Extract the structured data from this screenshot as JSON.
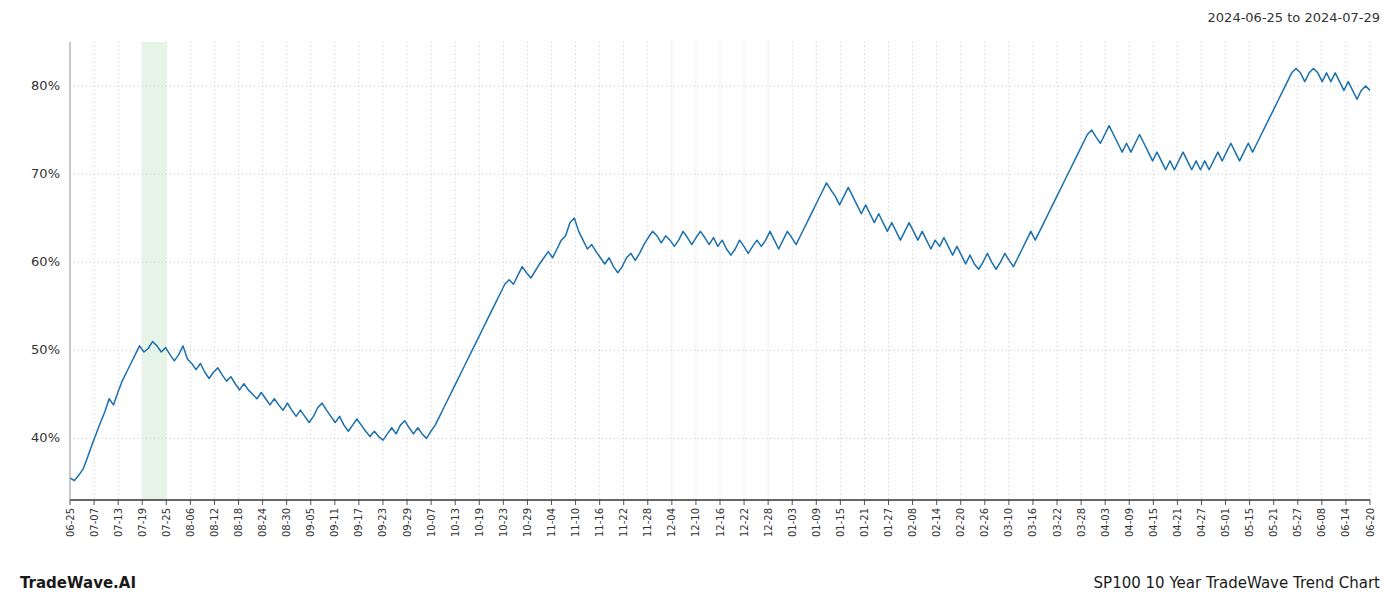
{
  "chart_data": {
    "type": "line",
    "title": "SP100 10 Year TradeWave Trend Chart",
    "subtitle": "2024-06-25 to 2024-07-29",
    "annotations": [
      "TradeWave.AI"
    ],
    "color": "#1a6fad",
    "grid": true,
    "xlim": [
      0,
      299
    ],
    "ylim": [
      33,
      85
    ],
    "yticks": [
      {
        "value": 40,
        "label": "40%"
      },
      {
        "value": 50,
        "label": "50%"
      },
      {
        "value": 60,
        "label": "60%"
      },
      {
        "value": 70,
        "label": "70%"
      },
      {
        "value": 80,
        "label": "80%"
      }
    ],
    "xticks": [
      {
        "value": 0,
        "label": "06-25"
      },
      {
        "value": 5.537037,
        "label": "07-07"
      },
      {
        "value": 11.074074,
        "label": "07-13"
      },
      {
        "value": 16.611111,
        "label": "07-19"
      },
      {
        "value": 22.148148,
        "label": "07-25"
      },
      {
        "value": 27.685185,
        "label": "08-06"
      },
      {
        "value": 33.222222,
        "label": "08-12"
      },
      {
        "value": 38.759259,
        "label": "08-18"
      },
      {
        "value": 44.296296,
        "label": "08-24"
      },
      {
        "value": 49.833333,
        "label": "08-30"
      },
      {
        "value": 55.37037,
        "label": "09-05"
      },
      {
        "value": 60.907407,
        "label": "09-11"
      },
      {
        "value": 66.444444,
        "label": "09-17"
      },
      {
        "value": 71.981481,
        "label": "09-23"
      },
      {
        "value": 77.518519,
        "label": "09-29"
      },
      {
        "value": 83.055556,
        "label": "10-07"
      },
      {
        "value": 88.592593,
        "label": "10-13"
      },
      {
        "value": 94.12963,
        "label": "10-19"
      },
      {
        "value": 99.666667,
        "label": "10-23"
      },
      {
        "value": 105.203704,
        "label": "10-29"
      },
      {
        "value": 110.740741,
        "label": "11-04"
      },
      {
        "value": 116.277778,
        "label": "11-10"
      },
      {
        "value": 121.814815,
        "label": "11-16"
      },
      {
        "value": 127.351852,
        "label": "11-22"
      },
      {
        "value": 132.888889,
        "label": "11-28"
      },
      {
        "value": 138.425926,
        "label": "12-04"
      },
      {
        "value": 143.962963,
        "label": "12-10"
      },
      {
        "value": 149.5,
        "label": "12-16"
      },
      {
        "value": 155.037037,
        "label": "12-22"
      },
      {
        "value": 160.574074,
        "label": "12-28"
      },
      {
        "value": 166.111111,
        "label": "01-03"
      },
      {
        "value": 171.648148,
        "label": "01-09"
      },
      {
        "value": 177.185185,
        "label": "01-15"
      },
      {
        "value": 182.722222,
        "label": "01-21"
      },
      {
        "value": 188.259259,
        "label": "01-27"
      },
      {
        "value": 193.796296,
        "label": "02-08"
      },
      {
        "value": 199.333333,
        "label": "02-14"
      },
      {
        "value": 204.87037,
        "label": "02-20"
      },
      {
        "value": 210.407407,
        "label": "02-26"
      },
      {
        "value": 215.944444,
        "label": "03-10"
      },
      {
        "value": 221.481481,
        "label": "03-16"
      },
      {
        "value": 227.018519,
        "label": "03-22"
      },
      {
        "value": 232.555556,
        "label": "03-28"
      },
      {
        "value": 238.092593,
        "label": "04-03"
      },
      {
        "value": 243.62963,
        "label": "04-09"
      },
      {
        "value": 249.166667,
        "label": "04-15"
      },
      {
        "value": 254.703704,
        "label": "04-21"
      },
      {
        "value": 260.240741,
        "label": "04-27"
      },
      {
        "value": 265.777778,
        "label": "05-01"
      },
      {
        "value": 271.314815,
        "label": "05-15"
      },
      {
        "value": 276.851852,
        "label": "05-21"
      },
      {
        "value": 282.388889,
        "label": "05-27"
      },
      {
        "value": 287.925926,
        "label": "06-08"
      },
      {
        "value": 293.462963,
        "label": "06-14"
      },
      {
        "value": 299,
        "label": "06-20"
      }
    ],
    "span": {
      "from": "07-19",
      "to": "07-25",
      "color": "#c8e6c9"
    },
    "values": [
      35.5,
      35.2,
      35.8,
      36.5,
      37.8,
      39.2,
      40.5,
      41.8,
      43.0,
      44.5,
      43.8,
      45.2,
      46.5,
      47.5,
      48.5,
      49.5,
      50.5,
      49.8,
      50.2,
      51.0,
      50.5,
      49.8,
      50.3,
      49.5,
      48.8,
      49.5,
      50.5,
      49.0,
      48.5,
      47.8,
      48.5,
      47.5,
      46.8,
      47.5,
      48.0,
      47.2,
      46.5,
      47.0,
      46.2,
      45.5,
      46.2,
      45.5,
      45.0,
      44.5,
      45.2,
      44.5,
      43.8,
      44.5,
      43.8,
      43.2,
      44.0,
      43.2,
      42.5,
      43.2,
      42.5,
      41.8,
      42.5,
      43.5,
      44.0,
      43.2,
      42.5,
      41.8,
      42.5,
      41.5,
      40.8,
      41.5,
      42.2,
      41.5,
      40.8,
      40.2,
      40.8,
      40.2,
      39.8,
      40.5,
      41.2,
      40.5,
      41.5,
      42.0,
      41.2,
      40.5,
      41.2,
      40.5,
      40.0,
      40.8,
      41.5,
      42.5,
      43.5,
      44.5,
      45.5,
      46.5,
      47.5,
      48.5,
      49.5,
      50.5,
      51.5,
      52.5,
      53.5,
      54.5,
      55.5,
      56.5,
      57.5,
      58.0,
      57.5,
      58.5,
      59.5,
      58.8,
      58.2,
      59.0,
      59.8,
      60.5,
      61.2,
      60.5,
      61.5,
      62.5,
      63.0,
      64.5,
      65.0,
      63.5,
      62.5,
      61.5,
      62.0,
      61.2,
      60.5,
      59.8,
      60.5,
      59.5,
      58.8,
      59.5,
      60.5,
      61.0,
      60.2,
      61.0,
      62.0,
      62.8,
      63.5,
      63.0,
      62.2,
      63.0,
      62.5,
      61.8,
      62.5,
      63.5,
      62.8,
      62.0,
      62.8,
      63.5,
      62.8,
      62.0,
      62.8,
      61.8,
      62.5,
      61.5,
      60.8,
      61.5,
      62.5,
      61.8,
      61.0,
      61.8,
      62.5,
      61.8,
      62.5,
      63.5,
      62.5,
      61.5,
      62.5,
      63.5,
      62.8,
      62.0,
      63.0,
      64.0,
      65.0,
      66.0,
      67.0,
      68.0,
      69.0,
      68.2,
      67.5,
      66.5,
      67.5,
      68.5,
      67.5,
      66.5,
      65.5,
      66.5,
      65.5,
      64.5,
      65.5,
      64.5,
      63.5,
      64.5,
      63.5,
      62.5,
      63.5,
      64.5,
      63.5,
      62.5,
      63.5,
      62.5,
      61.5,
      62.5,
      61.8,
      62.8,
      61.8,
      60.8,
      61.8,
      60.8,
      59.8,
      60.8,
      59.8,
      59.2,
      60.0,
      61.0,
      60.0,
      59.2,
      60.0,
      61.0,
      60.2,
      59.5,
      60.5,
      61.5,
      62.5,
      63.5,
      62.5,
      63.5,
      64.5,
      65.5,
      66.5,
      67.5,
      68.5,
      69.5,
      70.5,
      71.5,
      72.5,
      73.5,
      74.5,
      75.0,
      74.2,
      73.5,
      74.5,
      75.5,
      74.5,
      73.5,
      72.5,
      73.5,
      72.5,
      73.5,
      74.5,
      73.5,
      72.5,
      71.5,
      72.5,
      71.5,
      70.5,
      71.5,
      70.5,
      71.5,
      72.5,
      71.5,
      70.5,
      71.5,
      70.5,
      71.5,
      70.5,
      71.5,
      72.5,
      71.5,
      72.5,
      73.5,
      72.5,
      71.5,
      72.5,
      73.5,
      72.5,
      73.5,
      74.5,
      75.5,
      76.5,
      77.5,
      78.5,
      79.5,
      80.5,
      81.5,
      82.0,
      81.5,
      80.5,
      81.5,
      82.0,
      81.5,
      80.5,
      81.5,
      80.5,
      81.5,
      80.5,
      79.5,
      80.5,
      79.5,
      78.5,
      79.5,
      80.0,
      79.5
    ]
  }
}
